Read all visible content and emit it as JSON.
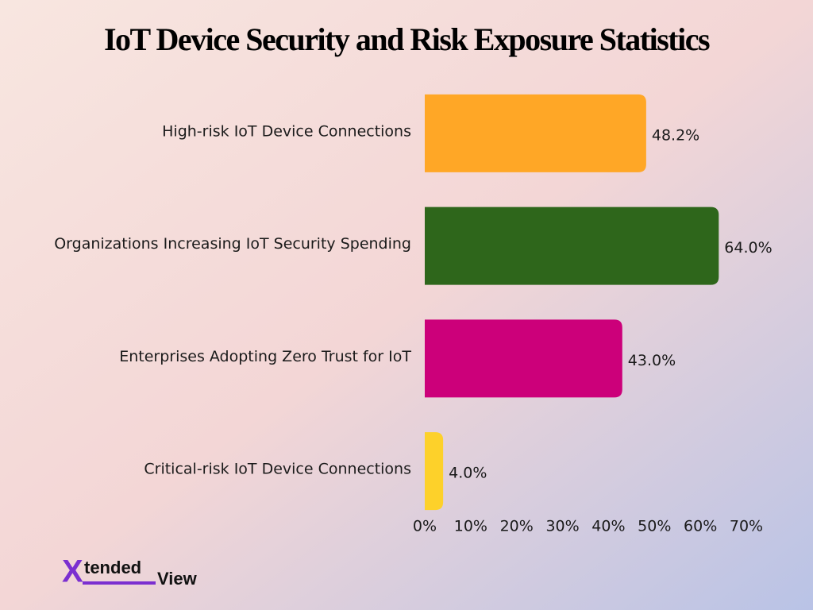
{
  "chart_data": {
    "type": "hbar",
    "title": "IoT Device Security and Risk Exposure Statistics",
    "categories": [
      "High-risk IoT Device Connections",
      "Organizations Increasing IoT Security Spending",
      "Enterprises Adopting Zero Trust for IoT",
      "Critical-risk IoT Device Connections"
    ],
    "values": [
      48.2,
      64.0,
      43.0,
      4.0
    ],
    "value_labels": [
      "48.2%",
      "64.0%",
      "43.0%",
      "4.0%"
    ],
    "colors": [
      "#ffa726",
      "#2e661b",
      "#cc007a",
      "#fdd12a"
    ],
    "xlim": [
      0,
      70
    ],
    "xticks": [
      {
        "value": 0,
        "label": "0%"
      },
      {
        "value": 10,
        "label": "10%"
      },
      {
        "value": 20,
        "label": "20%"
      },
      {
        "value": 30,
        "label": "30%"
      },
      {
        "value": 40,
        "label": "40%"
      },
      {
        "value": 50,
        "label": "50%"
      },
      {
        "value": 60,
        "label": "60%"
      },
      {
        "value": 70,
        "label": "70%"
      }
    ],
    "grid": false
  },
  "logo": {
    "mark": "X",
    "text": "tended",
    "text2": "View"
  }
}
